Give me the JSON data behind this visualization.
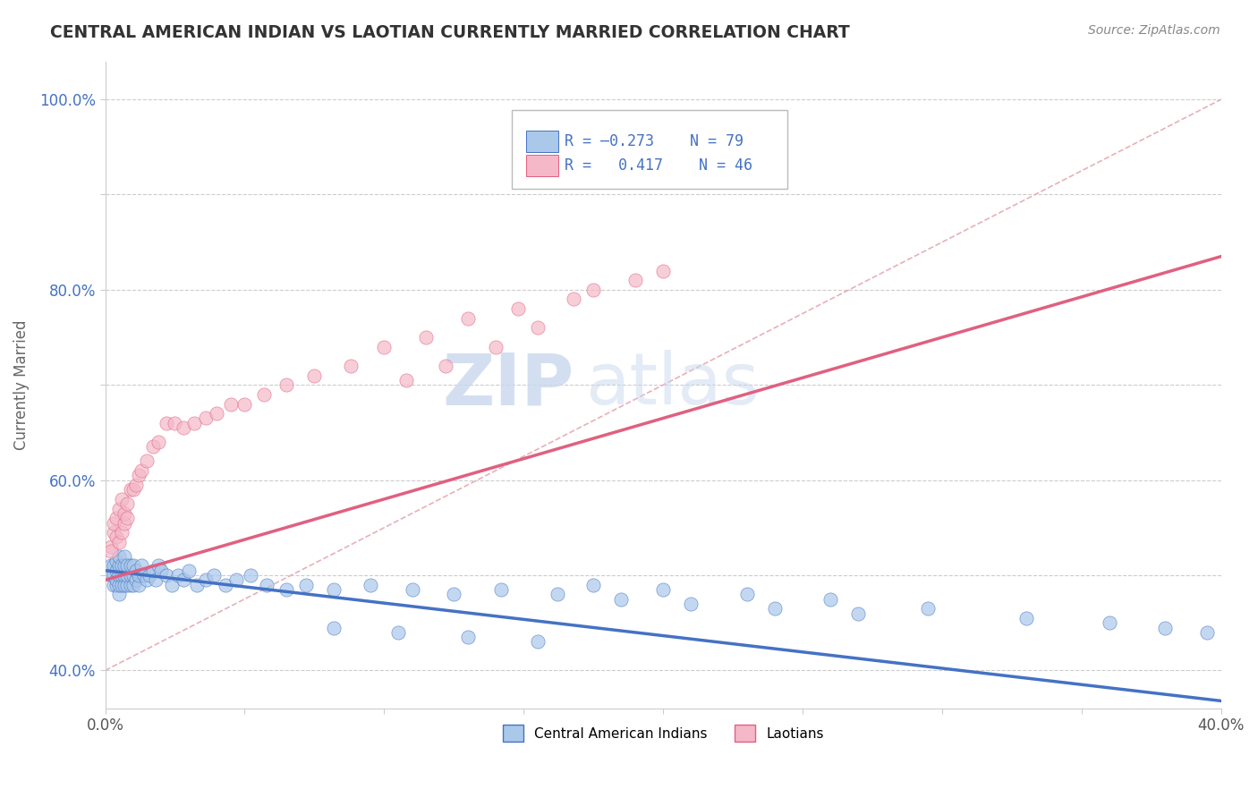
{
  "title": "CENTRAL AMERICAN INDIAN VS LAOTIAN CURRENTLY MARRIED CORRELATION CHART",
  "source": "Source: ZipAtlas.com",
  "ylabel": "Currently Married",
  "xlim": [
    0.0,
    0.4
  ],
  "ylim": [
    0.36,
    1.04
  ],
  "xticks": [
    0.0,
    0.05,
    0.1,
    0.15,
    0.2,
    0.25,
    0.3,
    0.35,
    0.4
  ],
  "xticklabels": [
    "0.0%",
    "",
    "",
    "",
    "",
    "",
    "",
    "",
    "40.0%"
  ],
  "yticks": [
    0.4,
    0.5,
    0.6,
    0.7,
    0.8,
    0.9,
    1.0
  ],
  "yticklabels": [
    "40.0%",
    "",
    "60.0%",
    "",
    "80.0%",
    "",
    "100.0%"
  ],
  "color_blue": "#aac8ea",
  "color_pink": "#f4b8c8",
  "color_blue_line": "#4472c4",
  "color_pink_line": "#e06080",
  "color_ref_line": "#e8b0b8",
  "watermark_zip": "ZIP",
  "watermark_atlas": "atlas",
  "blue_trend_x0": 0.0,
  "blue_trend_y0": 0.505,
  "blue_trend_x1": 0.4,
  "blue_trend_y1": 0.368,
  "pink_trend_x0": 0.0,
  "pink_trend_y0": 0.495,
  "pink_trend_x1": 0.4,
  "pink_trend_y1": 0.835,
  "ref_line_x0": 0.0,
  "ref_line_y0": 0.4,
  "ref_line_x1": 0.4,
  "ref_line_y1": 1.0,
  "blue_x": [
    0.002,
    0.002,
    0.003,
    0.003,
    0.003,
    0.004,
    0.004,
    0.004,
    0.004,
    0.005,
    0.005,
    0.005,
    0.005,
    0.005,
    0.006,
    0.006,
    0.006,
    0.007,
    0.007,
    0.007,
    0.007,
    0.008,
    0.008,
    0.008,
    0.009,
    0.009,
    0.009,
    0.01,
    0.01,
    0.01,
    0.011,
    0.011,
    0.012,
    0.012,
    0.013,
    0.014,
    0.015,
    0.016,
    0.017,
    0.018,
    0.019,
    0.02,
    0.022,
    0.024,
    0.026,
    0.028,
    0.03,
    0.033,
    0.036,
    0.039,
    0.043,
    0.047,
    0.052,
    0.058,
    0.065,
    0.072,
    0.082,
    0.095,
    0.11,
    0.125,
    0.142,
    0.162,
    0.185,
    0.21,
    0.24,
    0.27,
    0.175,
    0.2,
    0.23,
    0.26,
    0.295,
    0.33,
    0.36,
    0.38,
    0.395,
    0.155,
    0.13,
    0.105,
    0.082
  ],
  "blue_y": [
    0.5,
    0.51,
    0.49,
    0.5,
    0.51,
    0.49,
    0.495,
    0.505,
    0.515,
    0.48,
    0.49,
    0.5,
    0.51,
    0.52,
    0.49,
    0.5,
    0.51,
    0.49,
    0.5,
    0.51,
    0.52,
    0.49,
    0.5,
    0.51,
    0.49,
    0.5,
    0.51,
    0.49,
    0.5,
    0.51,
    0.495,
    0.505,
    0.49,
    0.5,
    0.51,
    0.5,
    0.495,
    0.5,
    0.505,
    0.495,
    0.51,
    0.505,
    0.5,
    0.49,
    0.5,
    0.495,
    0.505,
    0.49,
    0.495,
    0.5,
    0.49,
    0.495,
    0.5,
    0.49,
    0.485,
    0.49,
    0.485,
    0.49,
    0.485,
    0.48,
    0.485,
    0.48,
    0.475,
    0.47,
    0.465,
    0.46,
    0.49,
    0.485,
    0.48,
    0.475,
    0.465,
    0.455,
    0.45,
    0.445,
    0.44,
    0.43,
    0.435,
    0.44,
    0.445
  ],
  "pink_x": [
    0.002,
    0.002,
    0.003,
    0.003,
    0.004,
    0.004,
    0.005,
    0.005,
    0.006,
    0.006,
    0.007,
    0.007,
    0.008,
    0.008,
    0.009,
    0.01,
    0.011,
    0.012,
    0.013,
    0.015,
    0.017,
    0.019,
    0.022,
    0.025,
    0.028,
    0.032,
    0.036,
    0.04,
    0.045,
    0.05,
    0.057,
    0.065,
    0.075,
    0.088,
    0.1,
    0.115,
    0.13,
    0.148,
    0.168,
    0.19,
    0.175,
    0.2,
    0.155,
    0.14,
    0.122,
    0.108
  ],
  "pink_y": [
    0.53,
    0.525,
    0.545,
    0.555,
    0.54,
    0.56,
    0.535,
    0.57,
    0.545,
    0.58,
    0.555,
    0.565,
    0.575,
    0.56,
    0.59,
    0.59,
    0.595,
    0.605,
    0.61,
    0.62,
    0.635,
    0.64,
    0.66,
    0.66,
    0.655,
    0.66,
    0.665,
    0.67,
    0.68,
    0.68,
    0.69,
    0.7,
    0.71,
    0.72,
    0.74,
    0.75,
    0.77,
    0.78,
    0.79,
    0.81,
    0.8,
    0.82,
    0.76,
    0.74,
    0.72,
    0.705
  ]
}
